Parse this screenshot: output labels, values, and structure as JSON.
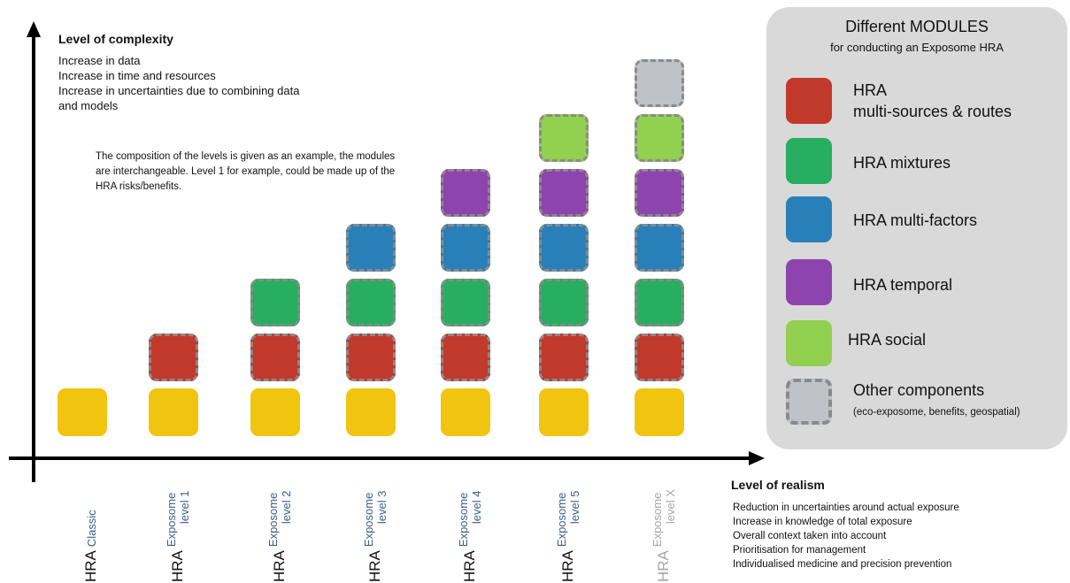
{
  "y_axis": {
    "title": "Level of complexity",
    "notes": [
      "Increase in data",
      "Increase in time and resources",
      "Increase in uncertainties due to combining data",
      "and models"
    ]
  },
  "note": "The composition of the levels is given as an example, the modules are interchangeable. Level 1 for example, could be made up of the HRA risks/benefits.",
  "x_axis": {
    "title": "Level of realism",
    "notes": [
      "Reduction in uncertainties around actual exposure",
      "Increase in knowledge of total exposure",
      "Overall context taken into account",
      "Prioritisation for management",
      "Individualised medicine and precision prevention"
    ]
  },
  "colors": {
    "classic": "#f1c50f",
    "multi_sources": "#c0392b",
    "mixtures": "#27ae60",
    "multi_factors": "#2980b9",
    "temporal": "#8e44ad",
    "social": "#92d050",
    "other": "#bfc3c7",
    "sub_label": "#3a5f8a",
    "faded_label": "#a6a6a6"
  },
  "levels": [
    {
      "hra": "HRA",
      "line1": "Classic",
      "line2": "",
      "faded": false,
      "stack": [
        "classic"
      ]
    },
    {
      "hra": "HRA",
      "line1": "Exposome",
      "line2": "level 1",
      "faded": false,
      "stack": [
        "classic",
        "multi_sources"
      ]
    },
    {
      "hra": "HRA",
      "line1": "Exposome",
      "line2": "level 2",
      "faded": false,
      "stack": [
        "classic",
        "multi_sources",
        "mixtures"
      ]
    },
    {
      "hra": "HRA",
      "line1": "Exposome",
      "line2": "level 3",
      "faded": false,
      "stack": [
        "classic",
        "multi_sources",
        "mixtures",
        "multi_factors"
      ]
    },
    {
      "hra": "HRA",
      "line1": "Exposome",
      "line2": "level 4",
      "faded": false,
      "stack": [
        "classic",
        "multi_sources",
        "mixtures",
        "multi_factors",
        "temporal"
      ]
    },
    {
      "hra": "HRA",
      "line1": "Exposome",
      "line2": "level 5",
      "faded": false,
      "stack": [
        "classic",
        "multi_sources",
        "mixtures",
        "multi_factors",
        "temporal",
        "social"
      ]
    },
    {
      "hra": "HRA",
      "line1": "Exposome",
      "line2": "level X",
      "faded": true,
      "stack": [
        "classic",
        "multi_sources",
        "mixtures",
        "multi_factors",
        "temporal",
        "social",
        "other"
      ]
    }
  ],
  "legend": {
    "title": "Different MODULES",
    "subtitle": "for conducting an Exposome HRA",
    "items": [
      {
        "key": "multi_sources",
        "label": "HRA",
        "label2": "multi-sources & routes",
        "detail": ""
      },
      {
        "key": "mixtures",
        "label": "HRA mixtures",
        "label2": "",
        "detail": ""
      },
      {
        "key": "multi_factors",
        "label": "HRA multi-factors",
        "label2": "",
        "detail": ""
      },
      {
        "key": "temporal",
        "label": "HRA temporal",
        "label2": "",
        "detail": ""
      },
      {
        "key": "social",
        "label": "HRA social",
        "label2": "",
        "detail": ""
      },
      {
        "key": "other",
        "label": "Other components",
        "label2": "",
        "detail": "(eco-exposome, benefits, geospatial)"
      }
    ]
  }
}
